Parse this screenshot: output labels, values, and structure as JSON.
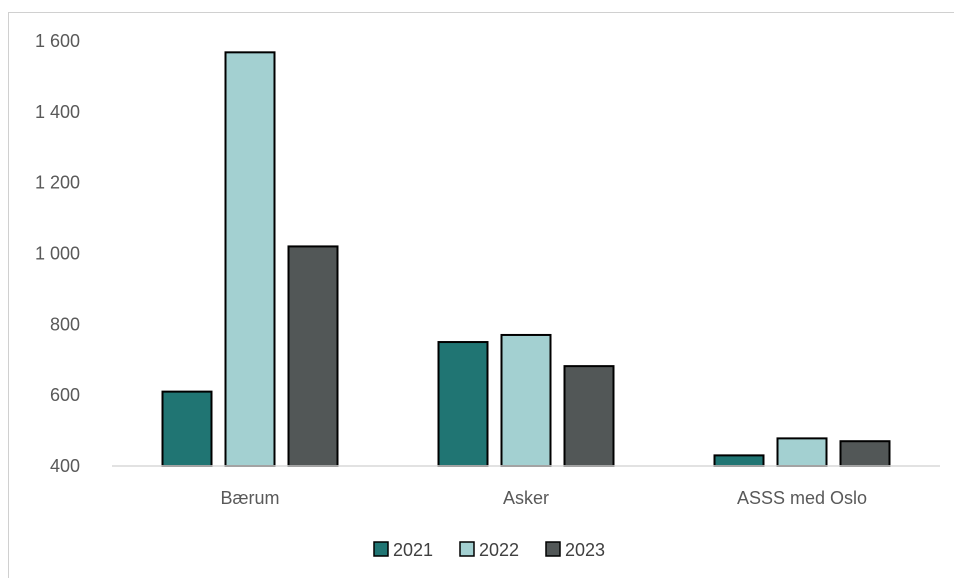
{
  "chart_data": {
    "type": "bar",
    "categories": [
      "Bærum",
      "Asker",
      "ASSS med Oslo"
    ],
    "series": [
      {
        "name": "2021",
        "color": "#207573",
        "values": [
          610,
          750,
          430
        ]
      },
      {
        "name": "2022",
        "color": "#a3d0d1",
        "values": [
          1568,
          770,
          478
        ]
      },
      {
        "name": "2023",
        "color": "#525757",
        "values": [
          1020,
          682,
          470
        ]
      }
    ],
    "ylim": [
      400,
      1600
    ],
    "yticks": [
      400,
      600,
      800,
      1000,
      1200,
      1400,
      1600
    ],
    "ytick_labels": [
      "400",
      "600",
      "800",
      "1 000",
      "1 200",
      "1 400",
      "1 600"
    ],
    "grid": false,
    "legend": "bottom",
    "title": "",
    "xlabel": "",
    "ylabel": ""
  }
}
